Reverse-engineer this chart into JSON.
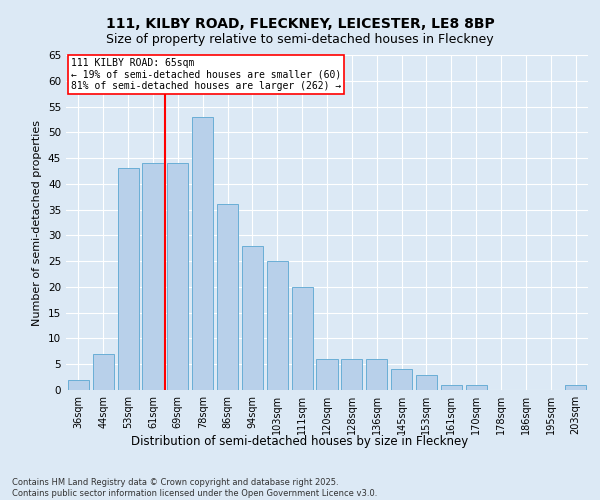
{
  "title1": "111, KILBY ROAD, FLECKNEY, LEICESTER, LE8 8BP",
  "title2": "Size of property relative to semi-detached houses in Fleckney",
  "xlabel": "Distribution of semi-detached houses by size in Fleckney",
  "ylabel": "Number of semi-detached properties",
  "categories": [
    "36sqm",
    "44sqm",
    "53sqm",
    "61sqm",
    "69sqm",
    "78sqm",
    "86sqm",
    "94sqm",
    "103sqm",
    "111sqm",
    "120sqm",
    "128sqm",
    "136sqm",
    "145sqm",
    "153sqm",
    "161sqm",
    "170sqm",
    "178sqm",
    "186sqm",
    "195sqm",
    "203sqm"
  ],
  "values": [
    2,
    7,
    43,
    44,
    44,
    53,
    36,
    28,
    25,
    20,
    6,
    6,
    6,
    4,
    3,
    1,
    1,
    0,
    0,
    0,
    1
  ],
  "bar_color": "#b8d0ea",
  "bar_edge_color": "#6aaed6",
  "background_color": "#dce9f5",
  "red_line_index": 3.5,
  "red_line_label": "111 KILBY ROAD: 65sqm",
  "annotation_smaller": "← 19% of semi-detached houses are smaller (60)",
  "annotation_larger": "81% of semi-detached houses are larger (262) →",
  "ylim": [
    0,
    65
  ],
  "yticks": [
    0,
    5,
    10,
    15,
    20,
    25,
    30,
    35,
    40,
    45,
    50,
    55,
    60,
    65
  ],
  "footer1": "Contains HM Land Registry data © Crown copyright and database right 2025.",
  "footer2": "Contains public sector information licensed under the Open Government Licence v3.0.",
  "grid_color": "#ffffff",
  "title1_fontsize": 10,
  "title2_fontsize": 9
}
